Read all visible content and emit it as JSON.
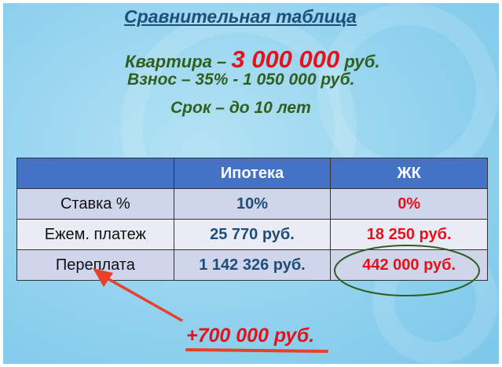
{
  "title": "Сравнительная таблица",
  "apartment": {
    "label": "Квартира –",
    "price": "3 000 000",
    "unit": "руб."
  },
  "down_payment": "Взнос – 35% - 1 050 000 руб.",
  "term": "Срок – до 10 лет",
  "table": {
    "headers": [
      "",
      "Ипотека",
      "ЖК"
    ],
    "rows": [
      {
        "label": "Ставка %",
        "mortgage": "10%",
        "zhk": "0%"
      },
      {
        "label": "Ежем. платеж",
        "mortgage": "25 770 руб.",
        "zhk": "18 250 руб."
      },
      {
        "label": "Переплата",
        "mortgage": "1 142 326 руб.",
        "zhk": "442 000 руб."
      }
    ]
  },
  "difference": "+700 000 руб.",
  "colors": {
    "title": "#1f4e79",
    "text_green": "#2e5f1e",
    "accent_red": "#e8111a",
    "header_blue": "#4472c4",
    "ellipse": "#2e5f1e"
  }
}
